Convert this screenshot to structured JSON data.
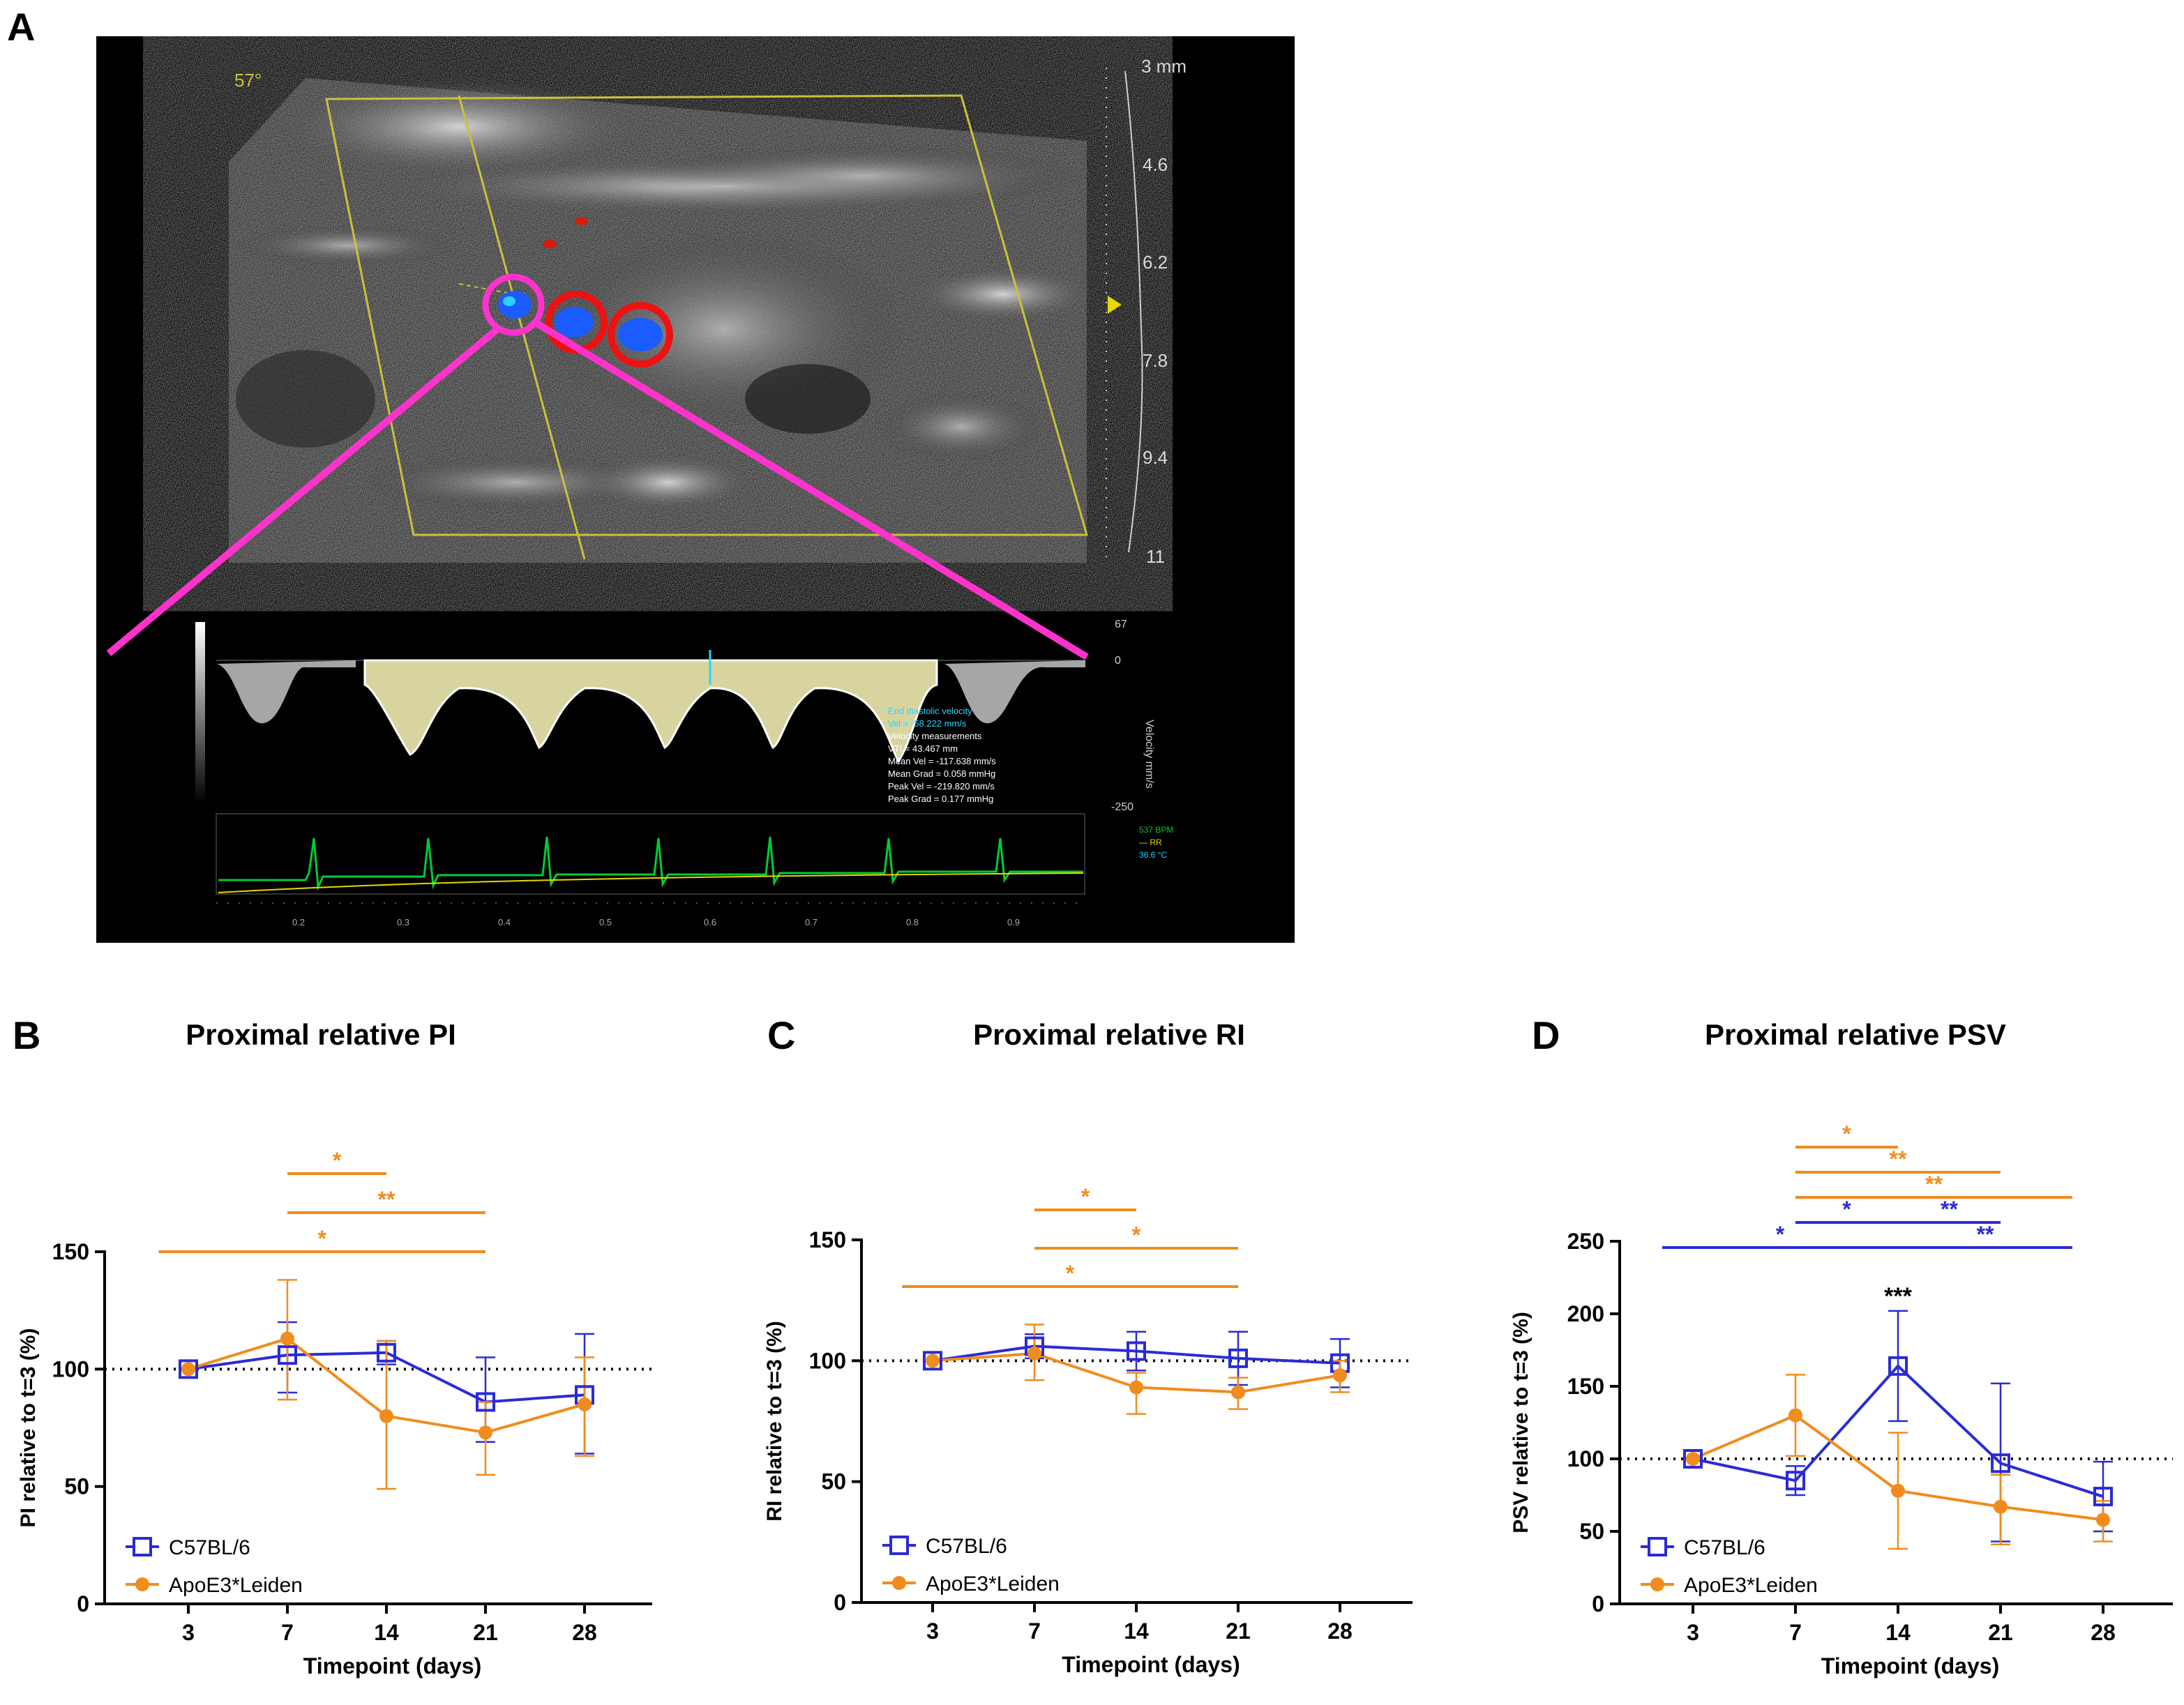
{
  "panel_labels": {
    "A": "A",
    "B": "B",
    "C": "C",
    "D": "D"
  },
  "ultrasound": {
    "angle_label": "57°",
    "depth_scale": [
      "3 mm",
      "4.6",
      "6.2",
      "7.8",
      "9.4",
      "11"
    ],
    "velocity_scale": {
      "top": "67",
      "zero": "0",
      "bottom": "-250",
      "axis_label": "Velocity mm/s"
    },
    "measurement_title": "End diastolic velocity",
    "measurement_vel": "Vel = -58.222 mm/s",
    "measurements": [
      "Velocity measurements",
      "VTI = 43.467 mm",
      "Mean Vel = -117.638 mm/s",
      "Mean Grad = 0.058 mmHg",
      "Peak Vel = -219.820 mm/s",
      "Peak Grad = 0.177 mmHg"
    ],
    "ecg_legend": [
      "537 BPM",
      "— RR",
      "36.6 °C"
    ],
    "time_ticks": [
      "0.2",
      "0.3",
      "0.4",
      "0.5",
      "0.6",
      "0.7",
      "0.8",
      "0.9"
    ],
    "colors": {
      "magenta": "#ff33cc",
      "red": "#ee1111",
      "doppler_blue": "#1a5cff",
      "ecg": "#00cc33",
      "frame": "#c8c23a"
    }
  },
  "chart_data": [
    {
      "id": "B",
      "type": "line",
      "title": "Proximal relative PI",
      "xlabel": "Timepoint (days)",
      "ylabel": "PI relative to t=3 (%)",
      "categories": [
        "3",
        "7",
        "14",
        "21",
        "28"
      ],
      "ylim": [
        0,
        150
      ],
      "yticks": [
        0,
        50,
        100,
        150
      ],
      "reference_line": 100,
      "series": [
        {
          "name": "C57BL/6",
          "color": "#2b2bd6",
          "marker": "open-square",
          "values": [
            100,
            106,
            107,
            86,
            89
          ],
          "err_hi": [
            0,
            14,
            5,
            19,
            26
          ],
          "err_lo": [
            0,
            16,
            5,
            17,
            25
          ]
        },
        {
          "name": "ApoE3*Leiden",
          "color": "#f08c1e",
          "marker": "filled-circle",
          "values": [
            100,
            113,
            80,
            73,
            85
          ],
          "err_hi": [
            0,
            25,
            32,
            13,
            20
          ],
          "err_lo": [
            0,
            26,
            31,
            18,
            22
          ]
        }
      ],
      "significance": [
        {
          "from": 1,
          "to": 2,
          "label": "*",
          "color": "#f08c1e",
          "level": 3
        },
        {
          "from": 1,
          "to": 3,
          "label": "**",
          "color": "#f08c1e",
          "level": 2
        },
        {
          "from": 0,
          "to": 3,
          "label": "*",
          "color": "#f08c1e",
          "level": 1
        }
      ],
      "point_labels": [],
      "legend": "bottom-left"
    },
    {
      "id": "C",
      "type": "line",
      "title": "Proximal relative RI",
      "xlabel": "Timepoint (days)",
      "ylabel": "RI relative to t=3 (%)",
      "categories": [
        "3",
        "7",
        "14",
        "21",
        "28"
      ],
      "ylim": [
        0,
        150
      ],
      "yticks": [
        0,
        50,
        100,
        150
      ],
      "reference_line": 100,
      "series": [
        {
          "name": "C57BL/6",
          "color": "#2b2bd6",
          "marker": "open-square",
          "values": [
            100,
            106,
            104,
            101,
            99
          ],
          "err_hi": [
            0,
            5,
            8,
            11,
            10
          ],
          "err_lo": [
            0,
            5,
            8,
            11,
            10
          ]
        },
        {
          "name": "ApoE3*Leiden",
          "color": "#f08c1e",
          "marker": "filled-circle",
          "values": [
            100,
            103,
            89,
            87,
            94
          ],
          "err_hi": [
            0,
            12,
            6,
            6,
            6
          ],
          "err_lo": [
            0,
            11,
            11,
            7,
            7
          ]
        }
      ],
      "significance": [
        {
          "from": 1,
          "to": 2,
          "label": "*",
          "color": "#f08c1e",
          "level": 3
        },
        {
          "from": 1,
          "to": 3,
          "label": "*",
          "color": "#f08c1e",
          "level": 2
        },
        {
          "from": 0,
          "to": 3,
          "label": "*",
          "color": "#f08c1e",
          "level": 1
        }
      ],
      "point_labels": [],
      "legend": "bottom-left"
    },
    {
      "id": "D",
      "type": "line",
      "title": "Proximal relative PSV",
      "xlabel": "Timepoint (days)",
      "ylabel": "PSV  relative to t=3 (%)",
      "categories": [
        "3",
        "7",
        "14",
        "21",
        "28"
      ],
      "ylim": [
        0,
        250
      ],
      "yticks": [
        0,
        50,
        100,
        150,
        200,
        250
      ],
      "reference_line": 100,
      "series": [
        {
          "name": "C57BL/6",
          "color": "#2b2bd6",
          "marker": "open-square",
          "values": [
            100,
            85,
            164,
            97,
            74
          ],
          "err_hi": [
            0,
            10,
            38,
            55,
            24
          ],
          "err_lo": [
            0,
            10,
            38,
            54,
            24
          ]
        },
        {
          "name": "ApoE3*Leiden",
          "color": "#f08c1e",
          "marker": "filled-circle",
          "values": [
            100,
            130,
            78,
            67,
            58
          ],
          "err_hi": [
            0,
            28,
            40,
            22,
            13
          ],
          "err_lo": [
            0,
            28,
            40,
            26,
            15
          ]
        }
      ],
      "significance": [
        {
          "from": 1,
          "to": 2,
          "label": "*",
          "color": "#f08c1e",
          "level": 6
        },
        {
          "from": 1,
          "to": 3,
          "label": "**",
          "color": "#f08c1e",
          "level": 5
        },
        {
          "from": 1,
          "to": 4,
          "label": "**",
          "color": "#f08c1e",
          "level": 4
        },
        {
          "from": 1,
          "to": 2,
          "label": "*",
          "color": "#2b2bd6",
          "level": 3
        },
        {
          "from": 2,
          "to": 3,
          "label": "**",
          "color": "#2b2bd6",
          "level": 3
        },
        {
          "from": 0,
          "to": 2,
          "label": "*",
          "color": "#2b2bd6",
          "level": 2
        },
        {
          "from": 2,
          "to": 4,
          "label": "**",
          "color": "#2b2bd6",
          "level": 2
        }
      ],
      "point_labels": [
        {
          "index": 2,
          "label": "***",
          "color": "#000000"
        }
      ],
      "legend": "bottom-left"
    }
  ]
}
